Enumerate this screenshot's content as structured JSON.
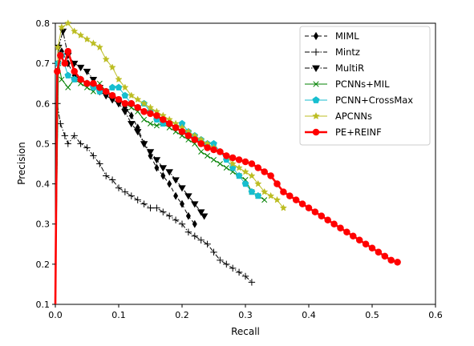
{
  "chart_data": {
    "type": "line",
    "xlabel": "Recall",
    "ylabel": "Precision",
    "xlim": [
      0,
      0.6
    ],
    "ylim": [
      0.1,
      0.8
    ],
    "xticks": [
      0.0,
      0.1,
      0.2,
      0.3,
      0.4,
      0.5,
      0.6
    ],
    "xtick_labels": [
      "0.0",
      "0.1",
      "0.2",
      "0.3",
      "0.4",
      "0.5",
      "0.6"
    ],
    "yticks": [
      0.1,
      0.2,
      0.3,
      0.4,
      0.5,
      0.6,
      0.7,
      0.8
    ],
    "ytick_labels": [
      "0.1",
      "0.2",
      "0.3",
      "0.4",
      "0.5",
      "0.6",
      "0.7",
      "0.8"
    ],
    "grid": false,
    "legend_position": "top-right",
    "series": [
      {
        "name": "MIML",
        "color": "#000000",
        "dash": "dashed",
        "marker": "diamond",
        "linewidth": 1,
        "x": [
          0.0,
          0.004,
          0.01,
          0.02,
          0.03,
          0.04,
          0.05,
          0.06,
          0.07,
          0.08,
          0.09,
          0.1,
          0.11,
          0.12,
          0.13,
          0.14,
          0.15,
          0.16,
          0.17,
          0.18,
          0.19,
          0.2,
          0.21,
          0.22
        ],
        "y": [
          0.1,
          0.7,
          0.73,
          0.7,
          0.67,
          0.66,
          0.65,
          0.65,
          0.63,
          0.62,
          0.61,
          0.6,
          0.59,
          0.57,
          0.54,
          0.5,
          0.47,
          0.44,
          0.42,
          0.4,
          0.37,
          0.35,
          0.32,
          0.3
        ]
      },
      {
        "name": "Mintz",
        "color": "#000000",
        "dash": "dashdot",
        "marker": "plus",
        "linewidth": 1,
        "x": [
          0.0,
          0.003,
          0.008,
          0.015,
          0.02,
          0.03,
          0.04,
          0.05,
          0.06,
          0.07,
          0.08,
          0.09,
          0.1,
          0.11,
          0.12,
          0.13,
          0.14,
          0.15,
          0.16,
          0.17,
          0.18,
          0.19,
          0.2,
          0.21,
          0.22,
          0.23,
          0.24,
          0.25,
          0.26,
          0.27,
          0.28,
          0.29,
          0.3,
          0.31
        ],
        "y": [
          0.1,
          0.6,
          0.55,
          0.52,
          0.5,
          0.52,
          0.5,
          0.49,
          0.47,
          0.45,
          0.42,
          0.41,
          0.39,
          0.38,
          0.37,
          0.36,
          0.35,
          0.34,
          0.34,
          0.33,
          0.32,
          0.31,
          0.3,
          0.28,
          0.27,
          0.26,
          0.25,
          0.23,
          0.21,
          0.2,
          0.19,
          0.18,
          0.17,
          0.155
        ]
      },
      {
        "name": "MultiR",
        "color": "#000000",
        "dash": "dashdot",
        "marker": "triangle-down",
        "linewidth": 1,
        "x": [
          0.0,
          0.005,
          0.012,
          0.02,
          0.03,
          0.04,
          0.05,
          0.06,
          0.07,
          0.08,
          0.09,
          0.1,
          0.11,
          0.12,
          0.13,
          0.14,
          0.15,
          0.16,
          0.17,
          0.18,
          0.19,
          0.2,
          0.21,
          0.22,
          0.23,
          0.235
        ],
        "y": [
          0.1,
          0.74,
          0.78,
          0.72,
          0.7,
          0.69,
          0.68,
          0.66,
          0.64,
          0.62,
          0.61,
          0.6,
          0.58,
          0.55,
          0.53,
          0.5,
          0.48,
          0.46,
          0.44,
          0.43,
          0.41,
          0.39,
          0.37,
          0.35,
          0.33,
          0.32
        ]
      },
      {
        "name": "PCNNs+MIL",
        "color": "#008000",
        "dash": "solid",
        "marker": "x",
        "linewidth": 1,
        "x": [
          0.0,
          0.005,
          0.01,
          0.02,
          0.03,
          0.04,
          0.05,
          0.06,
          0.07,
          0.08,
          0.09,
          0.1,
          0.11,
          0.12,
          0.13,
          0.14,
          0.15,
          0.16,
          0.17,
          0.18,
          0.19,
          0.2,
          0.21,
          0.22,
          0.23,
          0.24,
          0.25,
          0.26,
          0.27,
          0.28,
          0.29,
          0.3,
          0.31,
          0.32,
          0.33
        ],
        "y": [
          0.1,
          0.7,
          0.66,
          0.64,
          0.66,
          0.65,
          0.64,
          0.63,
          0.65,
          0.63,
          0.62,
          0.61,
          0.6,
          0.59,
          0.58,
          0.56,
          0.55,
          0.545,
          0.55,
          0.54,
          0.53,
          0.52,
          0.51,
          0.5,
          0.48,
          0.47,
          0.46,
          0.45,
          0.44,
          0.43,
          0.42,
          0.41,
          0.38,
          0.37,
          0.36
        ]
      },
      {
        "name": "PCNN+CrossMax",
        "color": "#17becf",
        "dash": "solid",
        "marker": "pentagon",
        "linewidth": 1,
        "x": [
          0.0,
          0.004,
          0.01,
          0.02,
          0.03,
          0.04,
          0.05,
          0.06,
          0.07,
          0.08,
          0.09,
          0.1,
          0.11,
          0.12,
          0.13,
          0.14,
          0.15,
          0.16,
          0.17,
          0.18,
          0.19,
          0.2,
          0.21,
          0.22,
          0.23,
          0.24,
          0.25,
          0.26,
          0.27,
          0.28,
          0.29,
          0.3,
          0.31,
          0.32
        ],
        "y": [
          0.1,
          0.7,
          0.72,
          0.67,
          0.66,
          0.66,
          0.65,
          0.64,
          0.63,
          0.63,
          0.64,
          0.64,
          0.62,
          0.6,
          0.59,
          0.6,
          0.58,
          0.56,
          0.55,
          0.55,
          0.54,
          0.55,
          0.53,
          0.52,
          0.51,
          0.5,
          0.5,
          0.48,
          0.46,
          0.44,
          0.42,
          0.4,
          0.38,
          0.37
        ]
      },
      {
        "name": "APCNNs",
        "color": "#bcbd22",
        "dash": "solid",
        "marker": "star",
        "linewidth": 1,
        "x": [
          0.0,
          0.004,
          0.01,
          0.02,
          0.03,
          0.04,
          0.05,
          0.06,
          0.07,
          0.08,
          0.09,
          0.1,
          0.11,
          0.12,
          0.13,
          0.14,
          0.15,
          0.16,
          0.17,
          0.18,
          0.19,
          0.2,
          0.21,
          0.22,
          0.23,
          0.24,
          0.25,
          0.26,
          0.27,
          0.28,
          0.29,
          0.3,
          0.31,
          0.32,
          0.33,
          0.34,
          0.35,
          0.36
        ],
        "y": [
          0.1,
          0.74,
          0.79,
          0.8,
          0.78,
          0.77,
          0.76,
          0.75,
          0.74,
          0.71,
          0.69,
          0.66,
          0.64,
          0.62,
          0.61,
          0.6,
          0.59,
          0.58,
          0.57,
          0.56,
          0.55,
          0.54,
          0.53,
          0.52,
          0.51,
          0.5,
          0.49,
          0.48,
          0.47,
          0.45,
          0.44,
          0.43,
          0.42,
          0.4,
          0.38,
          0.37,
          0.36,
          0.34
        ]
      },
      {
        "name": "PE+REINF",
        "color": "#ff0000",
        "dash": "solid",
        "marker": "circle",
        "linewidth": 2.6,
        "x": [
          0.0,
          0.003,
          0.008,
          0.015,
          0.02,
          0.03,
          0.04,
          0.05,
          0.06,
          0.07,
          0.08,
          0.09,
          0.1,
          0.11,
          0.12,
          0.13,
          0.14,
          0.15,
          0.16,
          0.17,
          0.18,
          0.19,
          0.2,
          0.21,
          0.22,
          0.23,
          0.24,
          0.25,
          0.26,
          0.27,
          0.28,
          0.29,
          0.3,
          0.31,
          0.32,
          0.33,
          0.34,
          0.35,
          0.36,
          0.37,
          0.38,
          0.39,
          0.4,
          0.41,
          0.42,
          0.43,
          0.44,
          0.45,
          0.46,
          0.47,
          0.48,
          0.49,
          0.5,
          0.51,
          0.52,
          0.53,
          0.54
        ],
        "y": [
          0.1,
          0.68,
          0.72,
          0.7,
          0.73,
          0.68,
          0.66,
          0.65,
          0.65,
          0.64,
          0.63,
          0.62,
          0.61,
          0.6,
          0.6,
          0.59,
          0.58,
          0.575,
          0.57,
          0.56,
          0.55,
          0.54,
          0.53,
          0.52,
          0.51,
          0.5,
          0.49,
          0.485,
          0.48,
          0.47,
          0.465,
          0.46,
          0.455,
          0.45,
          0.44,
          0.43,
          0.42,
          0.4,
          0.38,
          0.37,
          0.36,
          0.35,
          0.34,
          0.33,
          0.32,
          0.31,
          0.3,
          0.29,
          0.28,
          0.27,
          0.26,
          0.25,
          0.24,
          0.23,
          0.22,
          0.21,
          0.205
        ]
      }
    ]
  }
}
